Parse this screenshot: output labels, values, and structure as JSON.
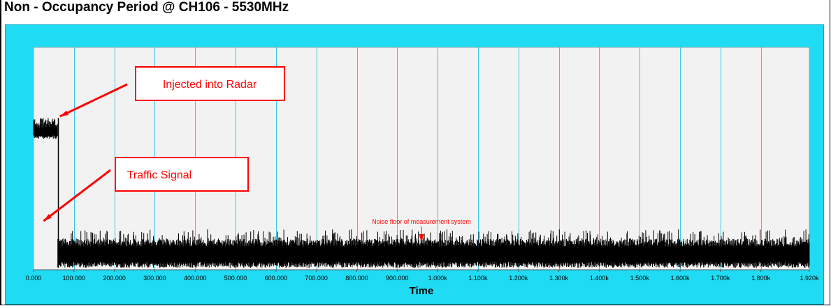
{
  "page": {
    "title": "Non - Occupancy Period @ CH106 - 5530MHz"
  },
  "chart_data": {
    "type": "line",
    "title": "Non - Occupancy Period @ CH106 - 5530MHz",
    "xlabel": "Time",
    "ylabel": "",
    "xlim": [
      0,
      1920
    ],
    "x_ticks": [
      0,
      100,
      200,
      300,
      400,
      500,
      600,
      700,
      800,
      900,
      1000,
      1100,
      1200,
      1300,
      1400,
      1500,
      1600,
      1700,
      1800,
      1920
    ],
    "x_tick_labels": [
      "0.000",
      "100.000",
      "200.000",
      "300.000",
      "400.000",
      "500.000",
      "600.000",
      "700.000",
      "800.000",
      "900.000",
      "1.000k",
      "1.100k",
      "1.200k",
      "1.300k",
      "1.400k",
      "1.500k",
      "1.600k",
      "1.700k",
      "1.800k",
      "1.920k"
    ],
    "grid": true,
    "colors": {
      "panel": "#1fdcf4",
      "plot_bg": "#f2f2f2",
      "grid": "#38c8e8",
      "trace": "#000000",
      "annotation": "#ff0000"
    },
    "series": [
      {
        "segments": [
          {
            "x_start": 0,
            "x_end": 60,
            "level_min": 0.74,
            "level_max": 0.86
          },
          {
            "x_start": 60,
            "x_end": 1920,
            "level_min": 0.0,
            "level_max": 0.22
          }
        ]
      }
    ],
    "annotations": [
      {
        "text": "Injected into Radar",
        "target_x": 60,
        "target_level": 0.86
      },
      {
        "text": "Traffic Signal",
        "target_x": 30,
        "target_level": 0.3
      },
      {
        "text": "Noise floor of measurement system",
        "target_x": 960,
        "target_level": 0.15
      }
    ]
  }
}
